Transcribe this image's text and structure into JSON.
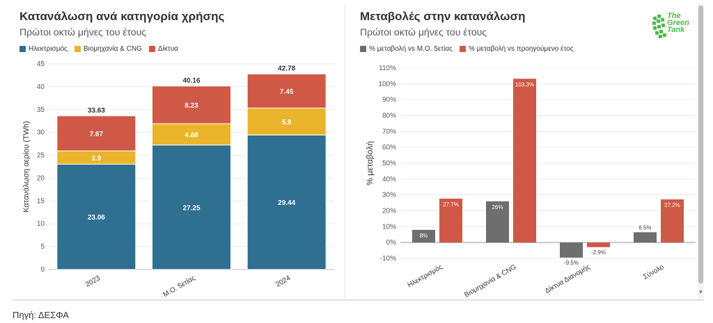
{
  "left": {
    "title": "Κατανάλωση ανά κατηγορία χρήσης",
    "subtitle": "Πρώτοι οκτώ μήνες του έτους",
    "legend": [
      {
        "label": "Ηλεκτρισμός",
        "color": "#2e6f92"
      },
      {
        "label": "Βιομηχανία & CNG",
        "color": "#eab52a"
      },
      {
        "label": "Δίκτυα",
        "color": "#cf5846"
      }
    ]
  },
  "right": {
    "title": "Μεταβολές στην κατανάλωση",
    "subtitle": "Πρώτοι οκτώ μήνες του έτους",
    "legend": [
      {
        "label": "% μεταβολή vs Μ.Ο. 5ετίας",
        "color": "#6e6e6e"
      },
      {
        "label": "% μεταβολή vs προηγούμενο έτος",
        "color": "#cf5846"
      }
    ]
  },
  "logo": {
    "line1": "The",
    "line2": "Green",
    "line3": "Tank",
    "color": "#4fb848"
  },
  "footer": {
    "source": "Πηγή: ΔΕΣΦΑ"
  },
  "chart_data": [
    {
      "type": "bar",
      "stacked": true,
      "title": "Κατανάλωση ανά κατηγορία χρήσης",
      "subtitle": "Πρώτοι οκτώ μήνες του έτους",
      "ylabel": "Κατανάλωση αερίου (TWh)",
      "xlabel": "",
      "ylim": [
        0,
        45
      ],
      "yticks": [
        0,
        5,
        10,
        15,
        20,
        25,
        30,
        35,
        40,
        45
      ],
      "grid": true,
      "legend_position": "top-left",
      "categories": [
        "2023",
        "Μ.Ο. 5ετίας",
        "2024"
      ],
      "series": [
        {
          "name": "Ηλεκτρισμός",
          "color": "#2e6f92",
          "values": [
            23.06,
            27.25,
            29.44
          ]
        },
        {
          "name": "Βιομηχανία & CNG",
          "color": "#eab52a",
          "values": [
            2.9,
            4.68,
            5.9
          ]
        },
        {
          "name": "Δίκτυα",
          "color": "#cf5846",
          "values": [
            7.67,
            8.23,
            7.45
          ]
        }
      ],
      "totals": [
        33.63,
        40.16,
        42.78
      ]
    },
    {
      "type": "bar",
      "stacked": false,
      "title": "Μεταβολές στην κατανάλωση",
      "subtitle": "Πρώτοι οκτώ μήνες του έτους",
      "ylabel": "% μεταβολή",
      "xlabel": "",
      "ylim": [
        -10,
        110
      ],
      "yticks": [
        -10,
        0,
        10,
        20,
        30,
        40,
        50,
        60,
        70,
        80,
        90,
        100,
        110
      ],
      "grid": true,
      "legend_position": "top-left",
      "categories": [
        "Ηλεκτρισμός",
        "Βιομηχανία & CNG",
        "Δίκτυα Διανομής",
        "Σύνολο"
      ],
      "series": [
        {
          "name": "% μεταβολή vs Μ.Ο. 5ετίας",
          "color": "#6e6e6e",
          "values": [
            8,
            26,
            -9.5,
            6.5
          ]
        },
        {
          "name": "% μεταβολή vs προηγούμενο έτος",
          "color": "#cf5846",
          "values": [
            27.7,
            103.3,
            -2.9,
            27.2
          ]
        }
      ]
    }
  ]
}
